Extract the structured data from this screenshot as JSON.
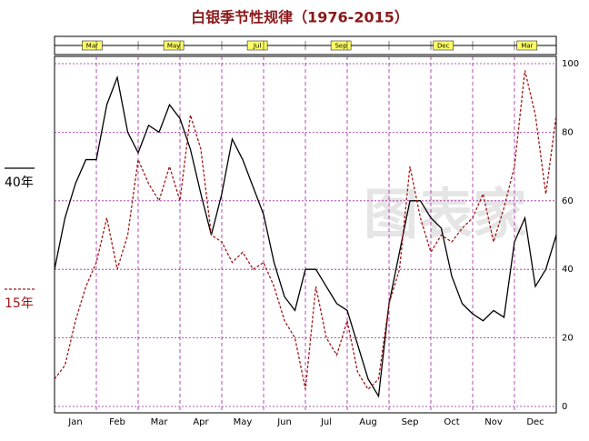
{
  "chart_data": {
    "type": "line",
    "title": "白银季节性规律（1976-2015）",
    "categories": [
      "Jan",
      "Feb",
      "Mar",
      "Apr",
      "May",
      "Jun",
      "Jul",
      "Aug",
      "Sep",
      "Oct",
      "Nov",
      "Dec"
    ],
    "top_strip_labels": [
      "Mar",
      "May",
      "Jul",
      "Sep",
      "Dec",
      "Mar"
    ],
    "x": [
      0,
      0.25,
      0.5,
      0.75,
      1,
      1.25,
      1.5,
      1.75,
      2,
      2.25,
      2.5,
      2.75,
      3,
      3.25,
      3.5,
      3.75,
      4,
      4.25,
      4.5,
      4.75,
      5,
      5.25,
      5.5,
      5.75,
      6,
      6.25,
      6.5,
      6.75,
      7,
      7.25,
      7.5,
      7.75,
      8,
      8.25,
      8.5,
      8.75,
      9,
      9.25,
      9.5,
      9.75,
      10,
      10.25,
      10.5,
      10.75,
      11,
      11.25,
      11.5,
      11.75,
      12
    ],
    "xlim": [
      0,
      12
    ],
    "series": [
      {
        "name": "40年",
        "color": "#000000",
        "dash": false,
        "values": [
          40,
          55,
          65,
          72,
          72,
          88,
          96,
          80,
          74,
          82,
          80,
          88,
          84,
          75,
          62,
          50,
          62,
          78,
          72,
          64,
          56,
          42,
          32,
          28,
          40,
          40,
          35,
          30,
          28,
          18,
          8,
          3,
          30,
          45,
          60,
          60,
          55,
          52,
          38,
          30,
          27,
          25,
          28,
          26,
          48,
          55,
          35,
          40,
          50
        ]
      },
      {
        "name": "15年",
        "color": "#a01818",
        "dash": true,
        "values": [
          8,
          12,
          25,
          35,
          42,
          55,
          40,
          50,
          72,
          65,
          60,
          70,
          60,
          85,
          75,
          50,
          48,
          42,
          45,
          40,
          42,
          35,
          25,
          20,
          5,
          35,
          20,
          15,
          25,
          10,
          5,
          8,
          30,
          40,
          70,
          55,
          45,
          50,
          48,
          52,
          55,
          62,
          48,
          58,
          70,
          98,
          85,
          62,
          85
        ]
      }
    ],
    "ylim": [
      0,
      100
    ],
    "yticks": [
      0,
      20,
      40,
      60,
      80,
      100
    ],
    "grid": true,
    "watermark": "图表家"
  }
}
